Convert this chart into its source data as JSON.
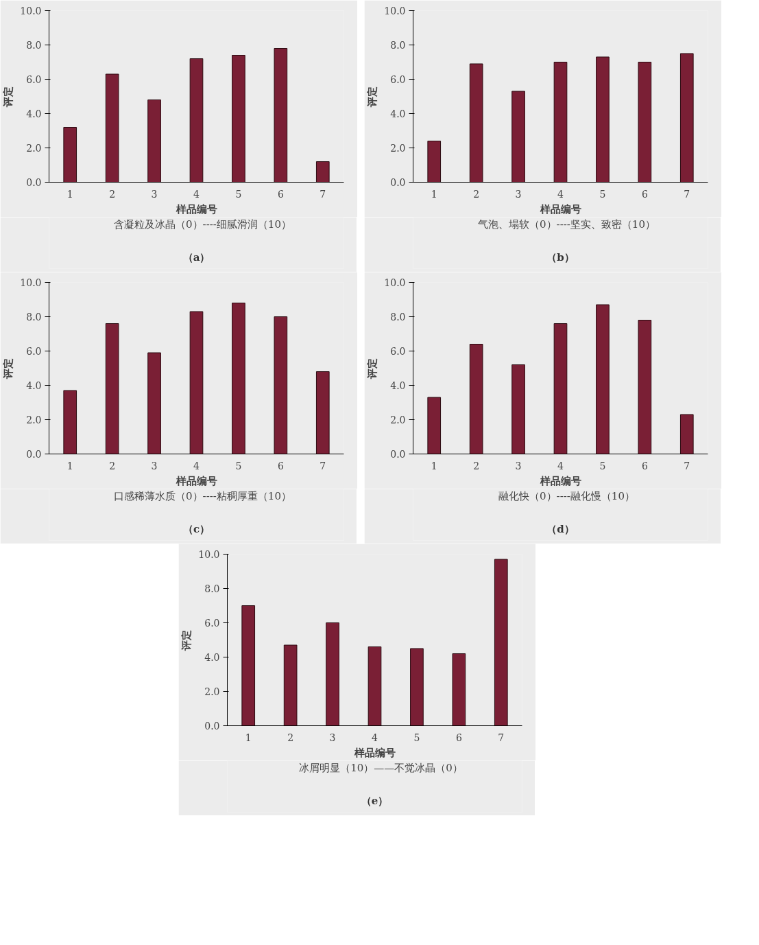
{
  "chart_data": [
    {
      "type": "bar",
      "xlabel": "样品编号",
      "ylabel": "评定",
      "categories": [
        "1",
        "2",
        "3",
        "4",
        "5",
        "6",
        "7"
      ],
      "series": [
        {
          "name": "含凝粒及冰晶（0）----细腻滑润（10）",
          "color": "#7a1f35",
          "values": [
            3.2,
            6.3,
            4.8,
            7.2,
            7.4,
            7.8,
            1.2
          ]
        }
      ],
      "ylim": [
        0,
        10
      ],
      "yticks": [
        {
          "value": 0,
          "label": "0.0"
        },
        {
          "value": 2,
          "label": "2.0"
        },
        {
          "value": 4,
          "label": "4.0"
        },
        {
          "value": 6,
          "label": "6.0"
        },
        {
          "value": 8,
          "label": "8.0"
        },
        {
          "value": 10,
          "label": "10.0"
        }
      ],
      "grid": false,
      "legend": "bottom",
      "annotations": [
        "（a）"
      ]
    },
    {
      "type": "bar",
      "xlabel": "样品编号",
      "ylabel": "评定",
      "categories": [
        "1",
        "2",
        "3",
        "4",
        "5",
        "6",
        "7"
      ],
      "series": [
        {
          "name": "气泡、塌软（0）----坚实、致密（10）",
          "color": "#7a1f35",
          "values": [
            2.4,
            6.9,
            5.3,
            7.0,
            7.3,
            7.0,
            7.5
          ]
        }
      ],
      "ylim": [
        0,
        10
      ],
      "yticks": [
        {
          "value": 0,
          "label": "0.0"
        },
        {
          "value": 2,
          "label": "2.0"
        },
        {
          "value": 4,
          "label": "4.0"
        },
        {
          "value": 6,
          "label": "6.0"
        },
        {
          "value": 8,
          "label": "8.0"
        },
        {
          "value": 10,
          "label": "10.0"
        }
      ],
      "grid": false,
      "legend": "bottom",
      "annotations": [
        "（b）"
      ]
    },
    {
      "type": "bar",
      "xlabel": "样品编号",
      "ylabel": "评定",
      "categories": [
        "1",
        "2",
        "3",
        "4",
        "5",
        "6",
        "7"
      ],
      "series": [
        {
          "name": "口感稀薄水质（0）----粘稠厚重（10）",
          "color": "#7a1f35",
          "values": [
            3.7,
            7.6,
            5.9,
            8.3,
            8.8,
            8.0,
            4.8
          ]
        }
      ],
      "ylim": [
        0,
        10
      ],
      "yticks": [
        {
          "value": 0,
          "label": "0.0"
        },
        {
          "value": 2,
          "label": "2.0"
        },
        {
          "value": 4,
          "label": "4.0"
        },
        {
          "value": 6,
          "label": "6.0"
        },
        {
          "value": 8,
          "label": "8.0"
        },
        {
          "value": 10,
          "label": "10.0"
        }
      ],
      "grid": false,
      "legend": "bottom",
      "annotations": [
        "（c）"
      ]
    },
    {
      "type": "bar",
      "xlabel": "样品编号",
      "ylabel": "评定",
      "categories": [
        "1",
        "2",
        "3",
        "4",
        "5",
        "6",
        "7"
      ],
      "series": [
        {
          "name": "融化快（0）----融化慢（10）",
          "color": "#7a1f35",
          "values": [
            3.3,
            6.4,
            5.2,
            7.6,
            8.7,
            7.8,
            2.3
          ]
        }
      ],
      "ylim": [
        0,
        10
      ],
      "yticks": [
        {
          "value": 0,
          "label": "0.0"
        },
        {
          "value": 2,
          "label": "2.0"
        },
        {
          "value": 4,
          "label": "4.0"
        },
        {
          "value": 6,
          "label": "6.0"
        },
        {
          "value": 8,
          "label": "8.0"
        },
        {
          "value": 10,
          "label": "10.0"
        }
      ],
      "grid": false,
      "legend": "bottom",
      "annotations": [
        "（d）"
      ]
    },
    {
      "type": "bar",
      "xlabel": "样品编号",
      "ylabel": "评定",
      "categories": [
        "1",
        "2",
        "3",
        "4",
        "5",
        "6",
        "7"
      ],
      "series": [
        {
          "name": "冰屑明显（10）——不觉冰晶（0）",
          "color": "#7a1f35",
          "values": [
            7.0,
            4.7,
            6.0,
            4.6,
            4.5,
            4.2,
            9.7
          ]
        }
      ],
      "ylim": [
        0,
        10
      ],
      "yticks": [
        {
          "value": 0,
          "label": "0.0"
        },
        {
          "value": 2,
          "label": "2.0"
        },
        {
          "value": 4,
          "label": "4.0"
        },
        {
          "value": 6,
          "label": "6.0"
        },
        {
          "value": 8,
          "label": "8.0"
        },
        {
          "value": 10,
          "label": "10.0"
        }
      ],
      "grid": false,
      "legend": "bottom",
      "annotations": [
        "（e）"
      ]
    }
  ]
}
